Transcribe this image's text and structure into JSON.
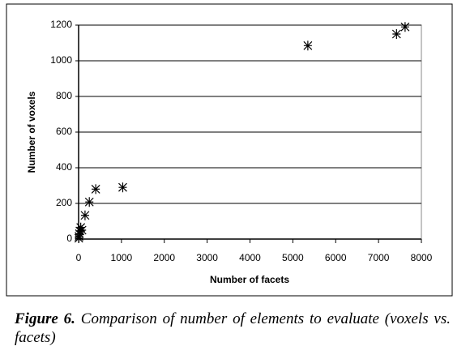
{
  "chart_data": {
    "type": "scatter",
    "x_label": "Number of facets",
    "y_label": "Number of voxels",
    "x": [
      7620,
      7420,
      5350,
      1030,
      400,
      250,
      150,
      50,
      30,
      80,
      20,
      10,
      5
    ],
    "values": [
      1190,
      1150,
      1085,
      290,
      280,
      208,
      133,
      65,
      45,
      50,
      30,
      15,
      5
    ],
    "color": "#000000",
    "xlim": [
      0,
      8000
    ],
    "xticks": [
      0,
      1000,
      2000,
      3000,
      4000,
      5000,
      6000,
      7000,
      8000
    ],
    "ylim": [
      0,
      1200
    ],
    "yticks": [
      0,
      200,
      400,
      600,
      800,
      1000,
      1200
    ],
    "grid": true,
    "caption": {
      "label": "Figure 6.",
      "text": "Comparison of number of elements to evaluate (voxels vs. facets)"
    }
  }
}
